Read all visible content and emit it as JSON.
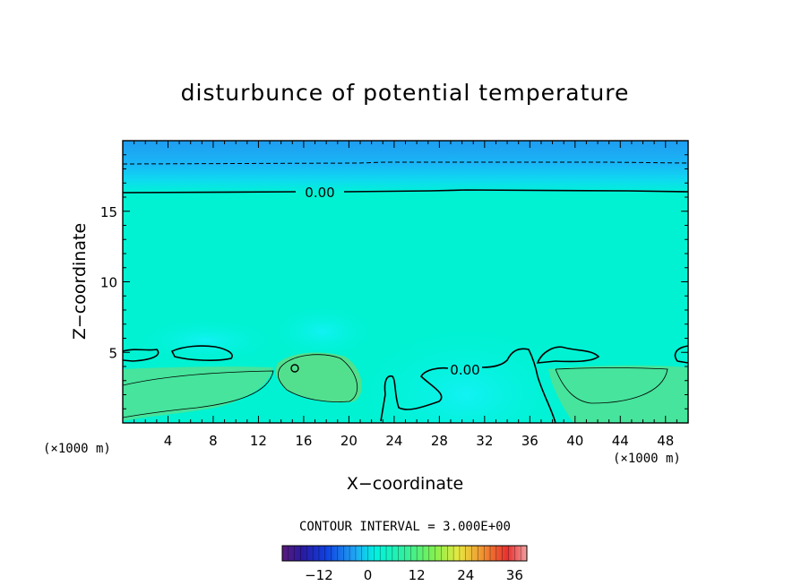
{
  "chart_data": {
    "type": "heatmap",
    "title": "disturbunce of potential temperature",
    "xlabel": "X−coordinate",
    "ylabel": "Z−coordinate",
    "xlim": [
      0,
      50
    ],
    "ylim": [
      0,
      20
    ],
    "x_ticks": [
      4,
      8,
      12,
      16,
      20,
      24,
      28,
      32,
      36,
      40,
      44,
      48
    ],
    "y_ticks": [
      5,
      10,
      15
    ],
    "x_unit": "(×1000 m)",
    "y_unit": "(×1000 m)",
    "contour_interval_text": "CONTOUR INTERVAL = 3.000E+00",
    "contour_labels": [
      {
        "text": "0.00",
        "x": 17,
        "z": 16.3
      },
      {
        "text": "0.00",
        "x": 30,
        "z": 3.7
      }
    ],
    "colorbar": {
      "range": [
        -21,
        39
      ],
      "ticks": [
        -12,
        0,
        12,
        24,
        36
      ]
    },
    "field_description_values": {
      "top_layer_z_range": [
        18.3,
        20
      ],
      "top_layer_value": -1.5,
      "zero_contour_z": 16.3,
      "lower_warm_pockets": [
        {
          "x_range": [
            0,
            13
          ],
          "z_top": 4,
          "value": 3
        },
        {
          "x_range": [
            14,
            21
          ],
          "z_top": 5,
          "value": 4
        },
        {
          "x_range": [
            38,
            50
          ],
          "z_top": 4,
          "value": 3
        }
      ],
      "cold_pool_x_range": [
        23,
        39
      ],
      "cold_pool_value": -1.5
    }
  }
}
